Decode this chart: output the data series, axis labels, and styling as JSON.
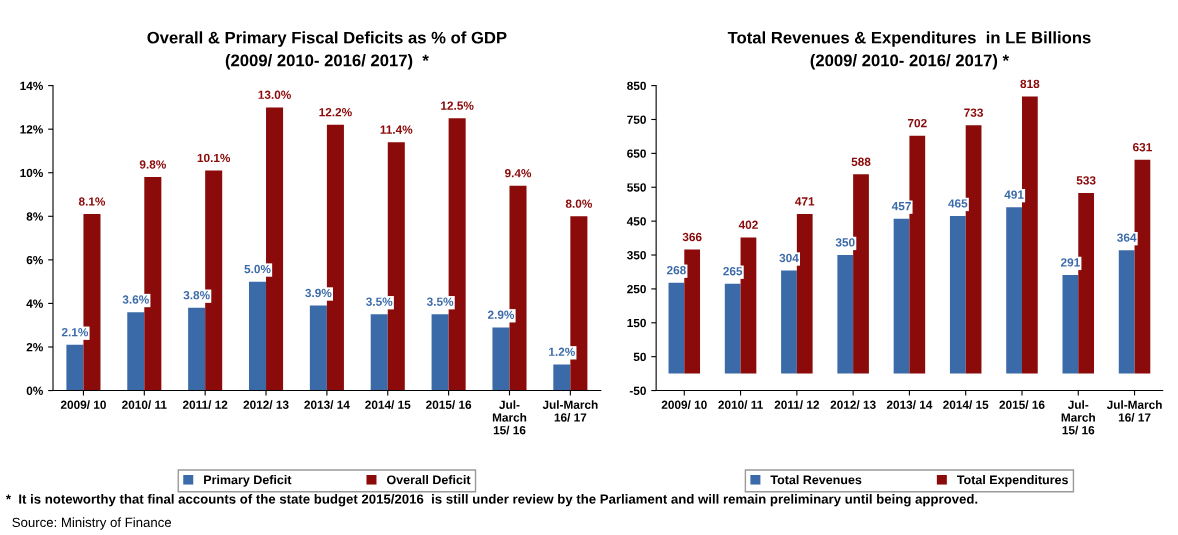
{
  "chart_data": [
    {
      "type": "bar",
      "title": "Overall & Primary Fiscal Deficits as % of GDP",
      "subtitle": "(2009/ 2010- 2016/ 2017)  *",
      "categories": [
        "2009/ 10",
        "2010/ 11",
        "2011/ 12",
        "2012/ 13",
        "2013/ 14",
        "2014/ 15",
        "2015/ 16",
        "Jul-\nMarch\n15/ 16",
        "Jul-March\n16/ 17"
      ],
      "series": [
        {
          "name": "Primary Deficit",
          "color": "#3b6aa8",
          "values": [
            2.1,
            3.6,
            3.8,
            5.0,
            3.9,
            3.5,
            3.5,
            2.9,
            1.2
          ],
          "value_labels": [
            "2.1%",
            "3.6%",
            "3.8%",
            "5.0%",
            "3.9%",
            "3.5%",
            "3.5%",
            "2.9%",
            "1.2%"
          ]
        },
        {
          "name": "Overall Deficit",
          "color": "#8b0a0a",
          "values": [
            8.1,
            9.8,
            10.1,
            13.0,
            12.2,
            11.4,
            12.5,
            9.4,
            8.0
          ],
          "value_labels": [
            "8.1%",
            "9.8%",
            "10.1%",
            "13.0%",
            "12.2%",
            "11.4%",
            "12.5%",
            "9.4%",
            "8.0%"
          ]
        }
      ],
      "ylim": [
        0,
        14
      ],
      "yticks": [
        {
          "value": 0,
          "label": "0%"
        },
        {
          "value": 2,
          "label": "2%"
        },
        {
          "value": 4,
          "label": "4%"
        },
        {
          "value": 6,
          "label": "6%"
        },
        {
          "value": 8,
          "label": "8%"
        },
        {
          "value": 10,
          "label": "10%"
        },
        {
          "value": 12,
          "label": "12%"
        },
        {
          "value": 14,
          "label": "14%"
        }
      ],
      "grid": false,
      "legend": "bottom",
      "annotations": [
        "*  It is noteworthy that final accounts of the state budget 2015/2016  is still under review by the Parliament and will remain preliminary until being approved.",
        "Source: Ministry of Finance"
      ]
    },
    {
      "type": "bar",
      "title": "Total Revenues & Expenditures  in LE Billions",
      "subtitle": "(2009/ 2010- 2016/ 2017) *",
      "categories": [
        "2009/ 10",
        "2010/ 11",
        "2011/ 12",
        "2012/ 13",
        "2013/ 14",
        "2014/ 15",
        "2015/ 16",
        "Jul-\nMarch\n15/ 16",
        "Jul-March\n16/ 17"
      ],
      "series": [
        {
          "name": "Total Revenues",
          "color": "#3b6aa8",
          "values": [
            268,
            265,
            304,
            350,
            457,
            465,
            491,
            291,
            364
          ]
        },
        {
          "name": "Total Expenditures",
          "color": "#8b0a0a",
          "values": [
            366,
            402,
            471,
            588,
            702,
            733,
            818,
            533,
            631
          ]
        }
      ],
      "data_labels": true,
      "ylim": [
        -50,
        850
      ],
      "yticks": [
        -50,
        50,
        150,
        250,
        350,
        450,
        550,
        650,
        750,
        850
      ],
      "grid": false,
      "legend": "bottom"
    }
  ]
}
